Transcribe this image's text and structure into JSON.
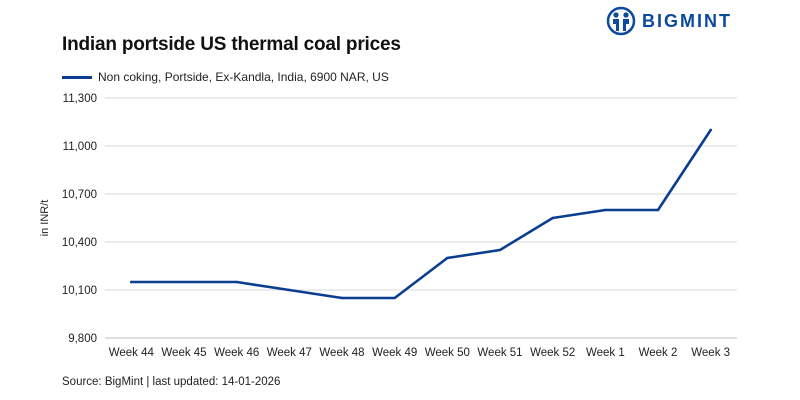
{
  "brand": {
    "name": "BIGMINT",
    "color": "#0b4a9c"
  },
  "source_text": "Source: BigMint | last updated: 14-01-2026",
  "chart_data": {
    "type": "line",
    "title": "Indian portside US thermal coal prices",
    "xlabel": "",
    "ylabel": "in INR/t",
    "categories": [
      "Week 44",
      "Week 45",
      "Week 46",
      "Week 47",
      "Week 48",
      "Week 49",
      "Week 50",
      "Week 51",
      "Week 52",
      "Week 1",
      "Week 2",
      "Week 3"
    ],
    "series": [
      {
        "name": "Non coking, Portside, Ex-Kandla, India, 6900 NAR, US",
        "color": "#0b3d91",
        "values": [
          10150,
          10150,
          10150,
          10100,
          10050,
          10050,
          10300,
          10350,
          10550,
          10600,
          10600,
          11100
        ]
      }
    ],
    "ylim": [
      9800,
      11300
    ],
    "yticks": [
      9800,
      10100,
      10400,
      10700,
      11000,
      11300
    ],
    "ytick_labels": [
      "9,800",
      "10,100",
      "10,400",
      "10,700",
      "11,000",
      "11,300"
    ],
    "grid": true,
    "legend": "top-left"
  }
}
